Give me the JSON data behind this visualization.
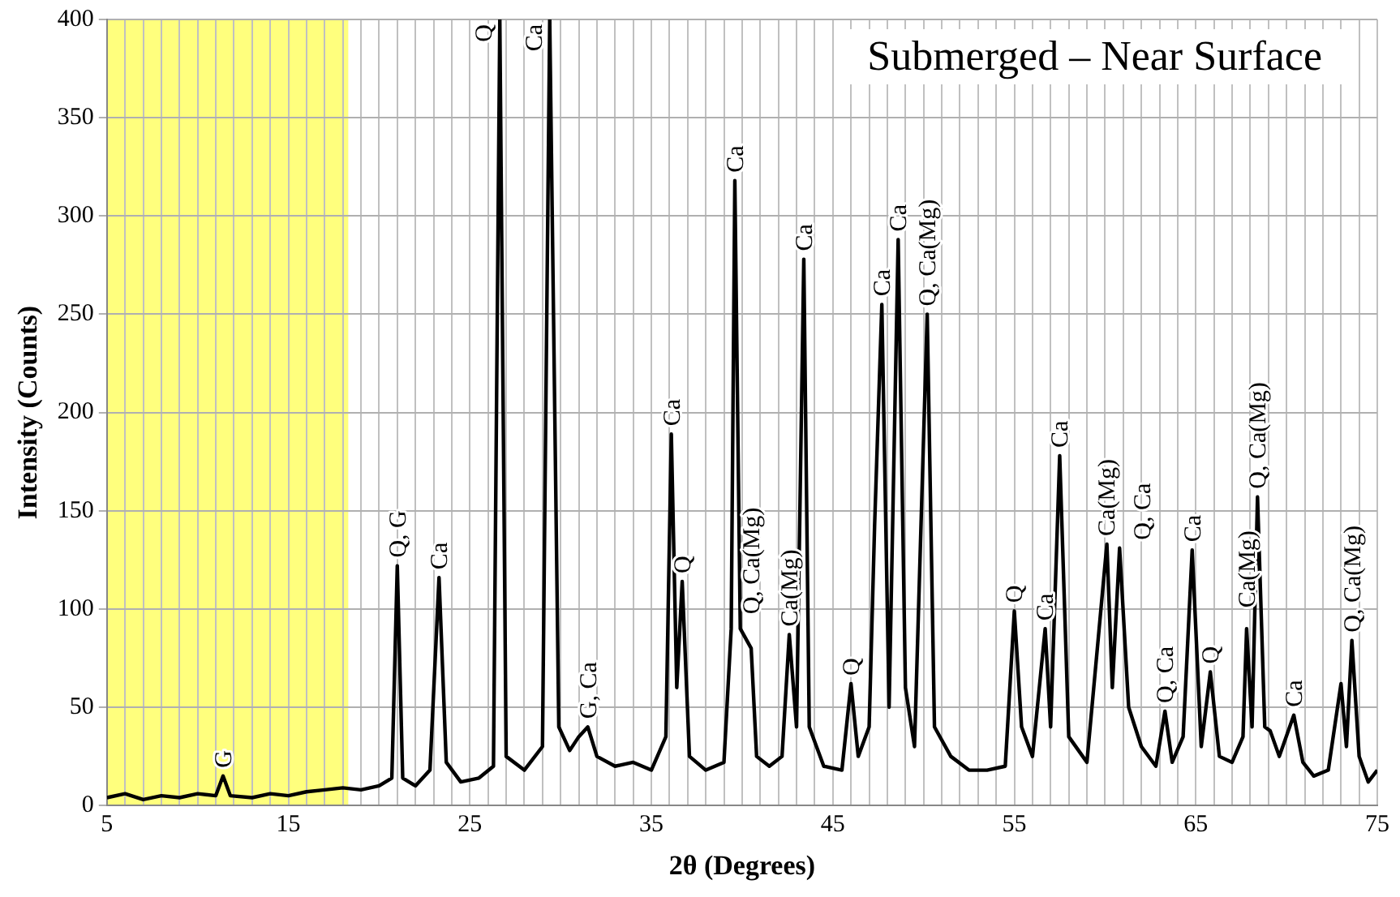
{
  "chart_data": {
    "type": "line",
    "title": "Submerged – Near Surface",
    "xlabel": "2θ (Degrees)",
    "ylabel": "Intensity (Counts)",
    "x": [
      5,
      6,
      7,
      8,
      9,
      10,
      11,
      11.4,
      11.8,
      13,
      14,
      15,
      16,
      17,
      18,
      19,
      20,
      20.7,
      21,
      21.3,
      22,
      22.8,
      23.3,
      23.7,
      24.5,
      25.5,
      26.3,
      26.65,
      27,
      28,
      29,
      29.4,
      29.9,
      30.5,
      31,
      31.5,
      32,
      33,
      34,
      35,
      35.8,
      36.1,
      36.4,
      36.7,
      37.1,
      38,
      39,
      39.4,
      39.6,
      39.9,
      40.5,
      40.8,
      41.5,
      42.2,
      42.6,
      43,
      43.4,
      43.7,
      44.5,
      45.5,
      46,
      46.4,
      47,
      47.3,
      47.7,
      48.1,
      48.6,
      49,
      49.5,
      50.2,
      50.6,
      51.5,
      52.5,
      53.5,
      54.5,
      55,
      55.4,
      56,
      56.7,
      57,
      57.5,
      58,
      59,
      60.1,
      60.4,
      60.8,
      61.3,
      62,
      62.8,
      63.3,
      63.7,
      64.3,
      64.8,
      65.3,
      65.8,
      66.3,
      67,
      67.6,
      67.8,
      68.1,
      68.4,
      68.8,
      69.1,
      69.6,
      70.4,
      70.9,
      71.5,
      72.3,
      73,
      73.3,
      73.6,
      74,
      74.5,
      75
    ],
    "series": [
      {
        "color": "#000000",
        "values": [
          4,
          6,
          3,
          5,
          4,
          6,
          5,
          15,
          5,
          4,
          6,
          5,
          7,
          8,
          9,
          8,
          10,
          14,
          122,
          14,
          10,
          18,
          116,
          22,
          12,
          14,
          20,
          400,
          25,
          18,
          30,
          400,
          40,
          28,
          35,
          40,
          25,
          20,
          22,
          18,
          35,
          189,
          60,
          114,
          25,
          18,
          22,
          90,
          318,
          90,
          80,
          25,
          20,
          25,
          87,
          40,
          278,
          40,
          20,
          18,
          62,
          25,
          40,
          142,
          255,
          50,
          288,
          60,
          30,
          250,
          40,
          25,
          18,
          18,
          20,
          99,
          40,
          25,
          90,
          40,
          178,
          35,
          22,
          133,
          60,
          131,
          50,
          30,
          20,
          48,
          22,
          35,
          130,
          30,
          68,
          25,
          22,
          35,
          90,
          40,
          157,
          40,
          38,
          25,
          46,
          22,
          15,
          18,
          62,
          30,
          84,
          25,
          12,
          18
        ]
      }
    ],
    "xlim": [
      5,
      75
    ],
    "xticks": [
      5,
      {
        "value": 6,
        "label": null
      },
      {
        "value": 7,
        "label": null
      },
      {
        "value": 8,
        "label": null
      },
      {
        "value": 9,
        "label": null
      },
      {
        "value": 10,
        "label": null
      },
      {
        "value": 11,
        "label": null
      },
      {
        "value": 12,
        "label": null
      },
      {
        "value": 13,
        "label": null
      },
      {
        "value": 14,
        "label": null
      },
      15,
      {
        "value": 16,
        "label": null
      },
      {
        "value": 17,
        "label": null
      },
      {
        "value": 18,
        "label": null
      },
      {
        "value": 19,
        "label": null
      },
      {
        "value": 20,
        "label": null
      },
      {
        "value": 21,
        "label": null
      },
      {
        "value": 22,
        "label": null
      },
      {
        "value": 23,
        "label": null
      },
      {
        "value": 24,
        "label": null
      },
      25,
      {
        "value": 26,
        "label": null
      },
      {
        "value": 27,
        "label": null
      },
      {
        "value": 28,
        "label": null
      },
      {
        "value": 29,
        "label": null
      },
      {
        "value": 30,
        "label": null
      },
      {
        "value": 31,
        "label": null
      },
      {
        "value": 32,
        "label": null
      },
      {
        "value": 33,
        "label": null
      },
      {
        "value": 34,
        "label": null
      },
      35,
      {
        "value": 36,
        "label": null
      },
      {
        "value": 37,
        "label": null
      },
      {
        "value": 38,
        "label": null
      },
      {
        "value": 39,
        "label": null
      },
      {
        "value": 40,
        "label": null
      },
      {
        "value": 41,
        "label": null
      },
      {
        "value": 42,
        "label": null
      },
      {
        "value": 43,
        "label": null
      },
      {
        "value": 44,
        "label": null
      },
      45,
      {
        "value": 46,
        "label": null
      },
      {
        "value": 47,
        "label": null
      },
      {
        "value": 48,
        "label": null
      },
      {
        "value": 49,
        "label": null
      },
      {
        "value": 50,
        "label": null
      },
      {
        "value": 51,
        "label": null
      },
      {
        "value": 52,
        "label": null
      },
      {
        "value": 53,
        "label": null
      },
      {
        "value": 54,
        "label": null
      },
      55,
      {
        "value": 56,
        "label": null
      },
      {
        "value": 57,
        "label": null
      },
      {
        "value": 58,
        "label": null
      },
      {
        "value": 59,
        "label": null
      },
      {
        "value": 60,
        "label": null
      },
      {
        "value": 61,
        "label": null
      },
      {
        "value": 62,
        "label": null
      },
      {
        "value": 63,
        "label": null
      },
      {
        "value": 64,
        "label": null
      },
      65,
      {
        "value": 66,
        "label": null
      },
      {
        "value": 67,
        "label": null
      },
      {
        "value": 68,
        "label": null
      },
      {
        "value": 69,
        "label": null
      },
      {
        "value": 70,
        "label": null
      },
      {
        "value": 71,
        "label": null
      },
      {
        "value": 72,
        "label": null
      },
      {
        "value": 73,
        "label": null
      },
      {
        "value": 74,
        "label": null
      },
      75
    ],
    "ylim": [
      0,
      400
    ],
    "yticks": [
      0,
      50,
      100,
      150,
      200,
      250,
      300,
      350,
      400
    ],
    "grid": true,
    "bands": [
      {
        "axis": "x",
        "from": 5,
        "to": 18.3,
        "color": "#ffff66"
      }
    ],
    "annotations": [
      {
        "text": "G",
        "x": 11.4,
        "y": 15
      },
      {
        "text": "Q, G",
        "x": 21,
        "y": 122
      },
      {
        "text": "Ca",
        "x": 23.3,
        "y": 116
      },
      {
        "text": "Q",
        "x": 26.65,
        "y": 400
      },
      {
        "text": "Ca",
        "x": 29.4,
        "y": 400
      },
      {
        "text": "G, Ca",
        "x": 31.5,
        "y": 40
      },
      {
        "text": "Ca",
        "x": 36.1,
        "y": 189
      },
      {
        "text": "Q",
        "x": 36.7,
        "y": 114
      },
      {
        "text": "Ca",
        "x": 39.6,
        "y": 318
      },
      {
        "text": "Q, Ca(Mg)",
        "x": 40.5,
        "y": 80
      },
      {
        "text": "Ca(Mg)",
        "x": 42.6,
        "y": 87
      },
      {
        "text": "Ca",
        "x": 43.4,
        "y": 278
      },
      {
        "text": "Q",
        "x": 46,
        "y": 62
      },
      {
        "text": "Ca",
        "x": 47.7,
        "y": 255
      },
      {
        "text": "Ca",
        "x": 48.6,
        "y": 288
      },
      {
        "text": "Q, Ca(Mg)",
        "x": 50.2,
        "y": 250
      },
      {
        "text": "Q",
        "x": 55,
        "y": 99
      },
      {
        "text": "Ca",
        "x": 56.7,
        "y": 90
      },
      {
        "text": "Ca",
        "x": 57.5,
        "y": 178
      },
      {
        "text": "Ca(Mg)",
        "x": 60.1,
        "y": 133
      },
      {
        "text": "Q, Ca",
        "x": 60.8,
        "y": 131
      },
      {
        "text": "Q, Ca",
        "x": 63.3,
        "y": 48
      },
      {
        "text": "Ca",
        "x": 64.8,
        "y": 130
      },
      {
        "text": "Q",
        "x": 65.8,
        "y": 68
      },
      {
        "text": "Ca(Mg)",
        "x": 67.8,
        "y": 90
      },
      {
        "text": "Q, Ca(Mg)",
        "x": 68.4,
        "y": 157
      },
      {
        "text": "Ca",
        "x": 70.4,
        "y": 46
      },
      {
        "text": "Q, Ca(Mg)",
        "x": 73.6,
        "y": 84
      }
    ]
  }
}
